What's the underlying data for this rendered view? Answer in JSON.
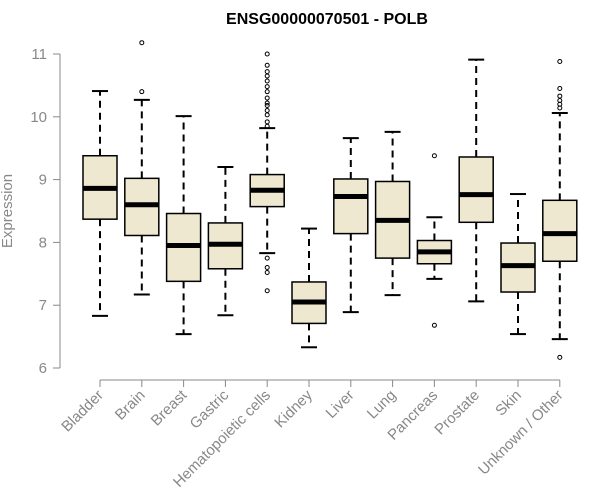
{
  "chart_data": {
    "type": "boxplot",
    "title": "ENSG00000070501 - POLB",
    "ylabel": "Expression",
    "xlabel": "",
    "ylim": [
      6,
      11
    ],
    "yticks": [
      6,
      7,
      8,
      9,
      10,
      11
    ],
    "box_fill": "#efe8d0",
    "box_stroke": "#000000",
    "axis_color": "#888888",
    "categories": [
      "Bladder",
      "Brain",
      "Breast",
      "Gastric",
      "Hematopoietic cells",
      "Kidney",
      "Liver",
      "Lung",
      "Pancreas",
      "Prostate",
      "Skin",
      "Unknown / Other"
    ],
    "boxes": [
      {
        "category": "Bladder",
        "whisker_low": 6.83,
        "q1": 8.37,
        "median": 8.86,
        "q3": 9.38,
        "whisker_high": 10.41,
        "outliers": []
      },
      {
        "category": "Brain",
        "whisker_low": 7.17,
        "q1": 8.11,
        "median": 8.6,
        "q3": 9.02,
        "whisker_high": 10.27,
        "outliers": [
          10.4,
          11.18
        ]
      },
      {
        "category": "Breast",
        "whisker_low": 6.54,
        "q1": 7.38,
        "median": 7.95,
        "q3": 8.46,
        "whisker_high": 10.01,
        "outliers": []
      },
      {
        "category": "Gastric",
        "whisker_low": 6.84,
        "q1": 7.58,
        "median": 7.97,
        "q3": 8.31,
        "whisker_high": 9.2,
        "outliers": []
      },
      {
        "category": "Hematopoietic cells",
        "whisker_low": 7.83,
        "q1": 8.57,
        "median": 8.83,
        "q3": 9.08,
        "whisker_high": 9.82,
        "outliers": [
          7.23,
          7.52,
          7.6,
          7.75,
          9.85,
          9.92,
          10.03,
          10.1,
          10.18,
          10.22,
          10.3,
          10.4,
          10.48,
          10.57,
          10.65,
          10.72,
          10.82,
          11.0
        ]
      },
      {
        "category": "Kidney",
        "whisker_low": 6.33,
        "q1": 6.71,
        "median": 7.05,
        "q3": 7.37,
        "whisker_high": 8.22,
        "outliers": []
      },
      {
        "category": "Liver",
        "whisker_low": 6.89,
        "q1": 8.14,
        "median": 8.73,
        "q3": 9.01,
        "whisker_high": 9.66,
        "outliers": []
      },
      {
        "category": "Lung",
        "whisker_low": 7.16,
        "q1": 7.75,
        "median": 8.35,
        "q3": 8.97,
        "whisker_high": 9.76,
        "outliers": []
      },
      {
        "category": "Pancreas",
        "whisker_low": 7.42,
        "q1": 7.66,
        "median": 7.85,
        "q3": 8.03,
        "whisker_high": 8.4,
        "outliers": [
          6.68,
          9.38
        ]
      },
      {
        "category": "Prostate",
        "whisker_low": 7.06,
        "q1": 8.32,
        "median": 8.76,
        "q3": 9.36,
        "whisker_high": 10.91,
        "outliers": []
      },
      {
        "category": "Skin",
        "whisker_low": 6.54,
        "q1": 7.21,
        "median": 7.63,
        "q3": 7.99,
        "whisker_high": 8.77,
        "outliers": []
      },
      {
        "category": "Unknown / Other",
        "whisker_low": 6.46,
        "q1": 7.7,
        "median": 8.14,
        "q3": 8.67,
        "whisker_high": 10.06,
        "outliers": [
          6.17,
          10.14,
          10.2,
          10.26,
          10.33,
          10.45,
          10.88
        ]
      }
    ]
  }
}
